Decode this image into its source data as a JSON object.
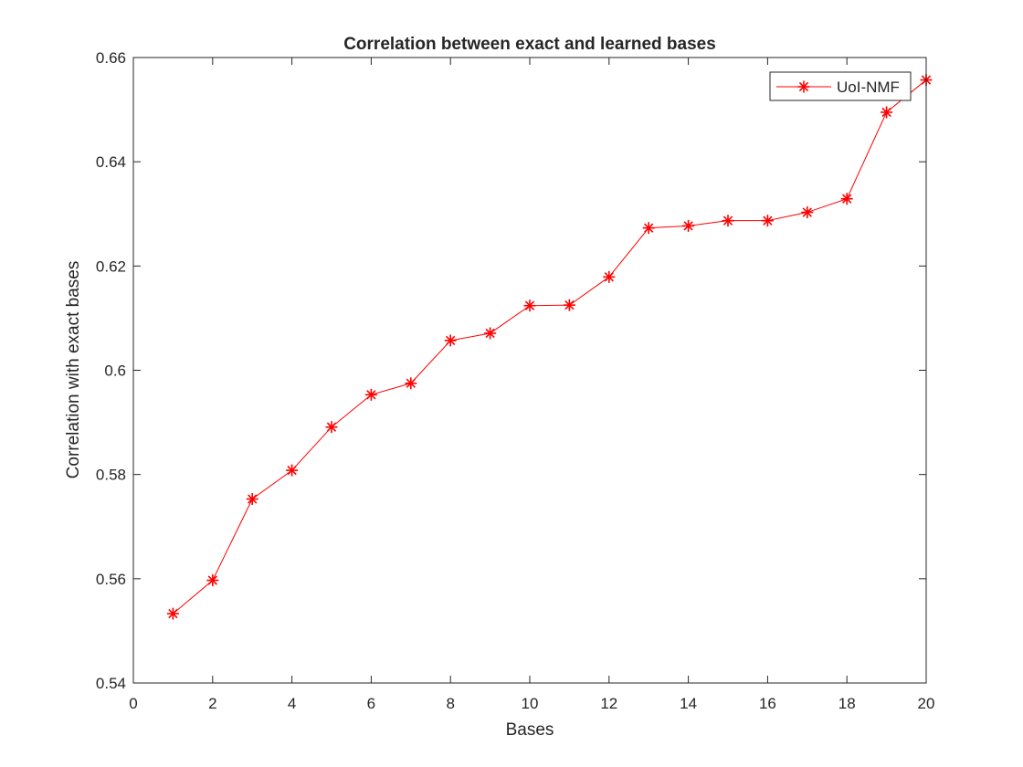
{
  "chart_data": {
    "type": "line",
    "title": "Correlation between exact and learned bases",
    "xlabel": "Bases",
    "ylabel": "Correlation with exact bases",
    "xlim": [
      0,
      20
    ],
    "ylim": [
      0.54,
      0.66
    ],
    "xticks": [
      0,
      2,
      4,
      6,
      8,
      10,
      12,
      14,
      16,
      18,
      20
    ],
    "yticks": [
      0.54,
      0.56,
      0.58,
      0.6,
      0.62,
      0.64,
      0.66
    ],
    "xtick_labels": [
      "0",
      "2",
      "4",
      "6",
      "8",
      "10",
      "12",
      "14",
      "16",
      "18",
      "20"
    ],
    "ytick_labels": [
      "0.54",
      "0.56",
      "0.58",
      "0.6",
      "0.62",
      "0.64",
      "0.66"
    ],
    "grid": false,
    "legend_position": "top-right",
    "series": [
      {
        "name": "UoI-NMF",
        "color": "#ff0000",
        "marker": "asterisk",
        "x": [
          1,
          2,
          3,
          4,
          5,
          6,
          7,
          8,
          9,
          10,
          11,
          12,
          13,
          14,
          15,
          16,
          17,
          18,
          19,
          20
        ],
        "y": [
          0.5533,
          0.5597,
          0.5753,
          0.5808,
          0.5891,
          0.5953,
          0.5975,
          0.6057,
          0.6071,
          0.6124,
          0.6125,
          0.6179,
          0.6273,
          0.6277,
          0.6287,
          0.6287,
          0.6303,
          0.6329,
          0.6495,
          0.6557
        ]
      }
    ]
  }
}
